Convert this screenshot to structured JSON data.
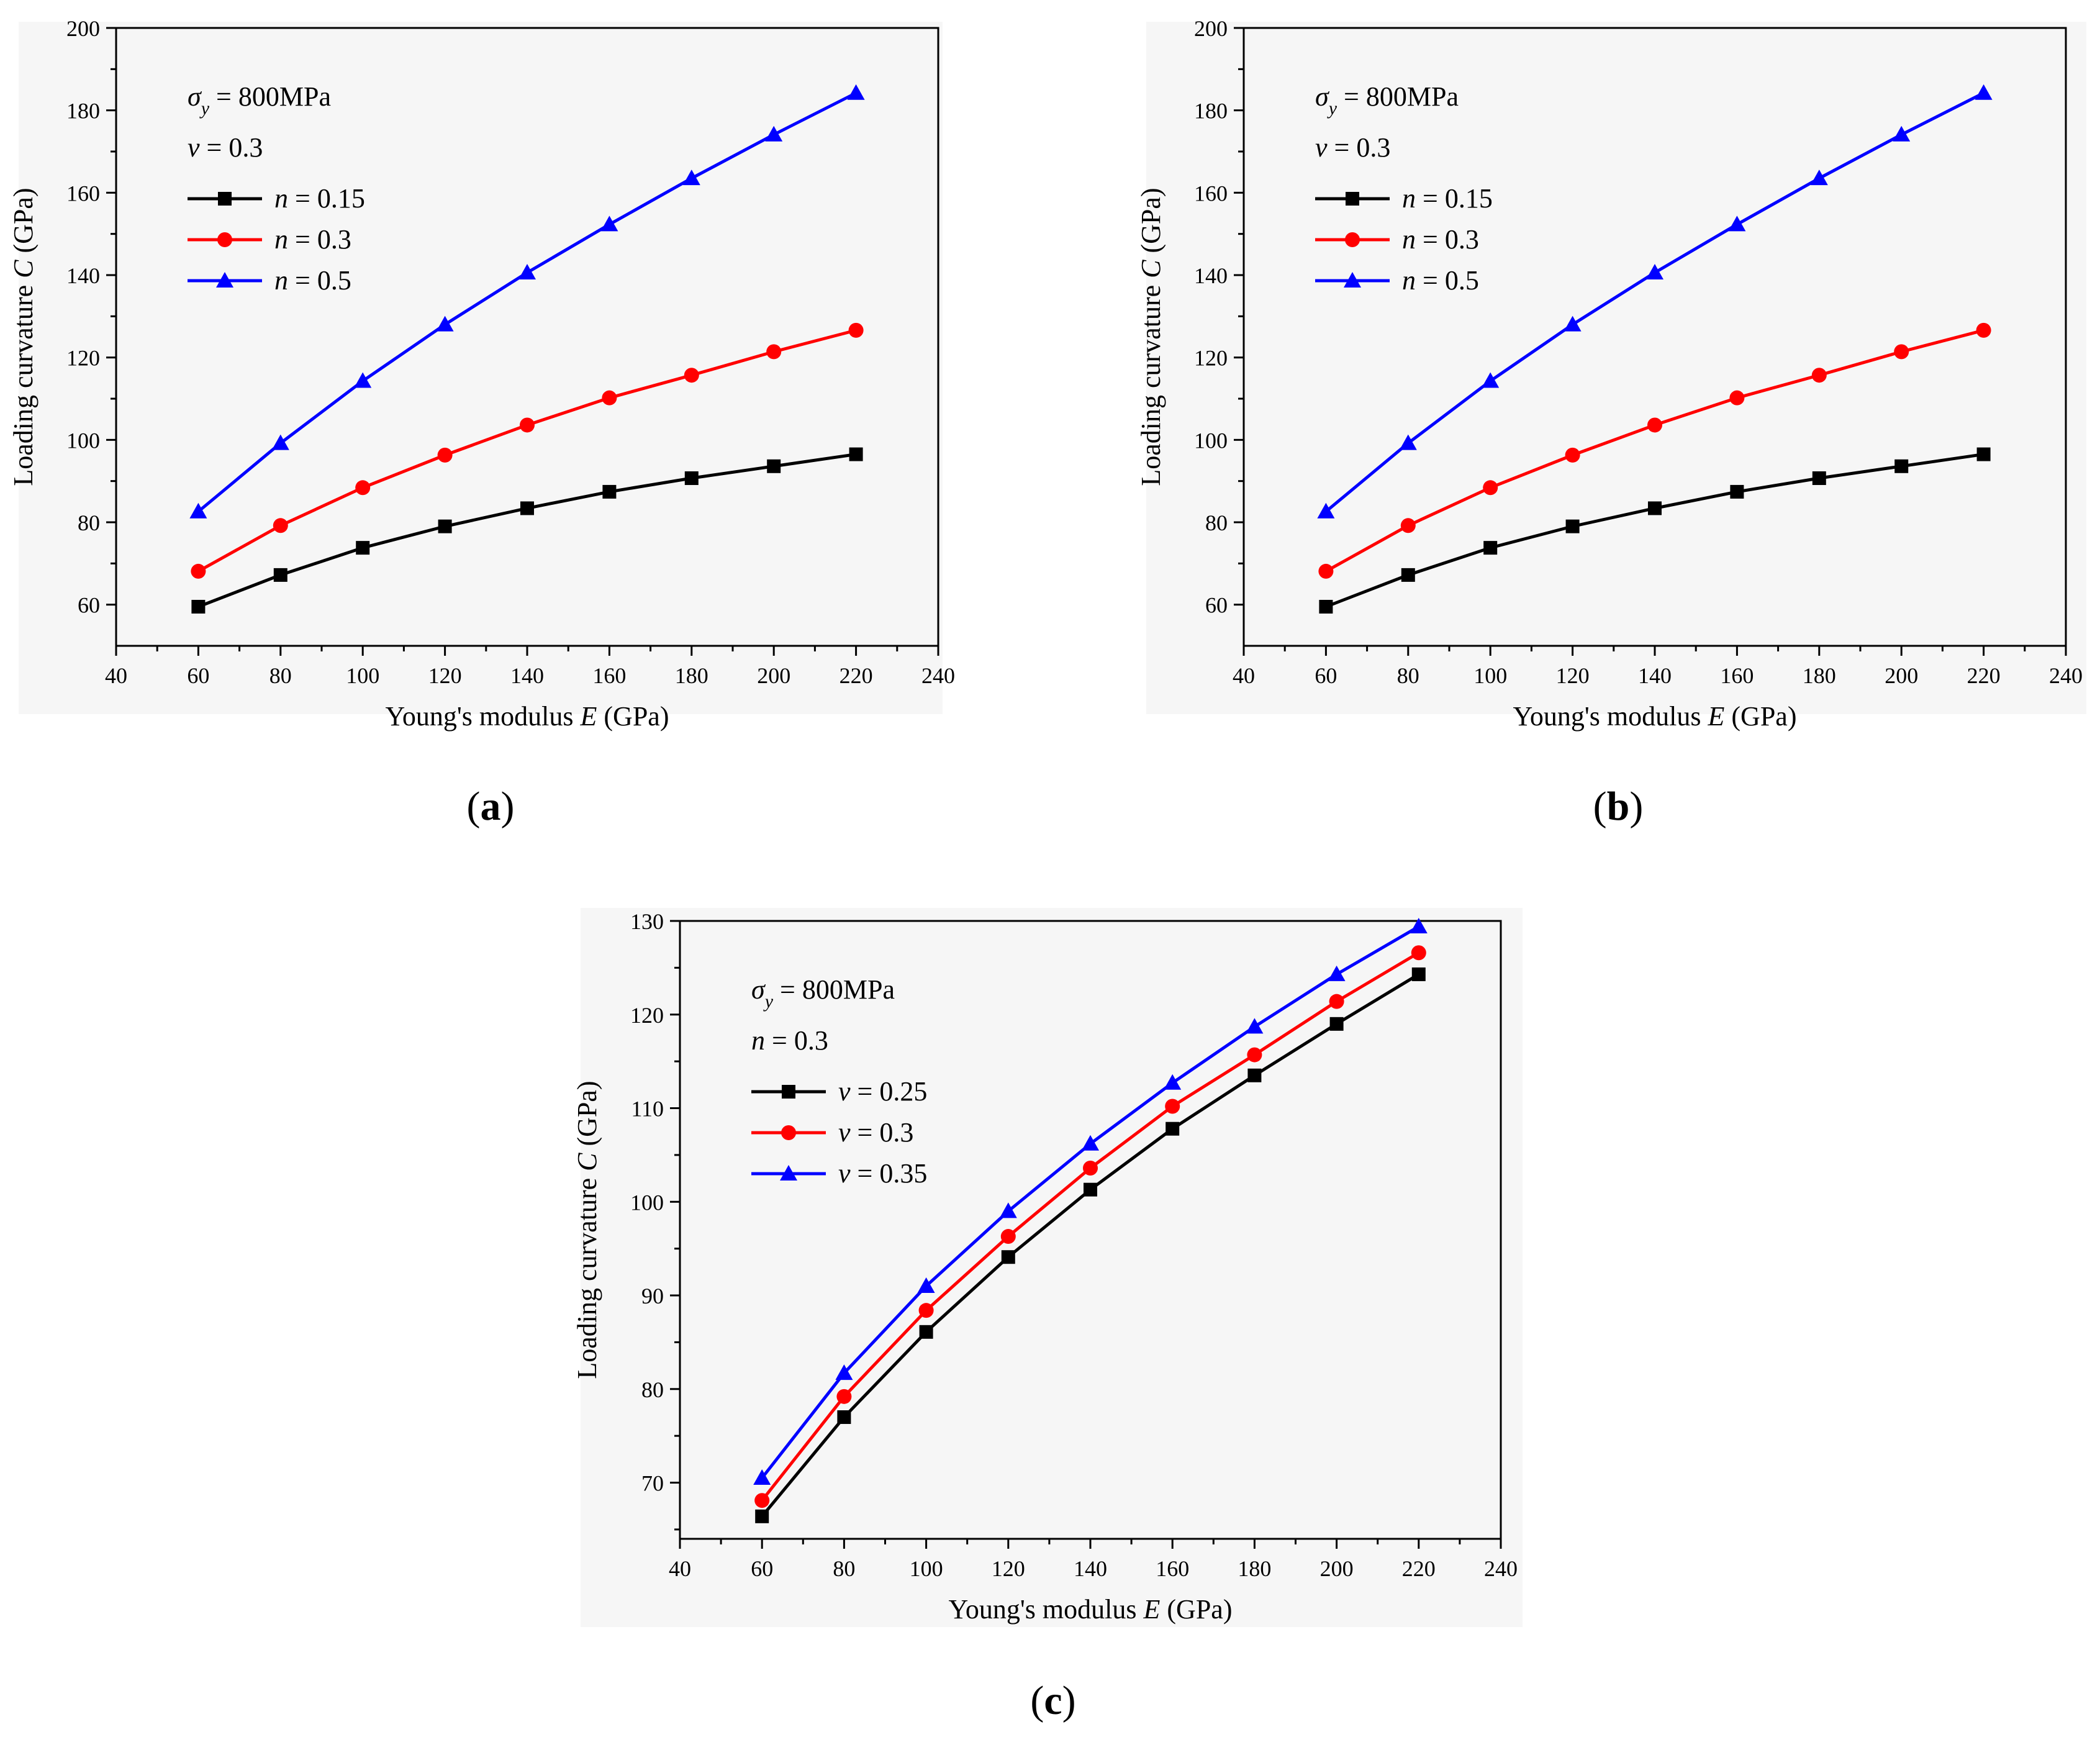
{
  "colors": {
    "black": "#000000",
    "red": "#ff0000",
    "blue": "#0000ff"
  },
  "chart_data": [
    {
      "id": "a",
      "type": "line",
      "caption": {
        "open": "(",
        "letter": "a",
        "close": ")"
      },
      "xlabel": {
        "prefix": "Young's modulus ",
        "var": "E",
        "suffix": " (GPa)"
      },
      "ylabel": {
        "prefix": "Loading curvature ",
        "var": "C",
        "suffix": " (GPa)"
      },
      "xlim": [
        40,
        240
      ],
      "ylim": [
        50,
        200
      ],
      "xticks": [
        40,
        60,
        80,
        100,
        120,
        140,
        160,
        180,
        200,
        220,
        240
      ],
      "yticks": [
        60,
        80,
        100,
        120,
        140,
        160,
        180,
        200
      ],
      "annotations": [
        {
          "var": "σ",
          "sub": "y",
          "text": " = 800MPa"
        },
        {
          "var": "ν",
          "sub": "",
          "text": " = 0.3"
        }
      ],
      "x": [
        60,
        80,
        100,
        120,
        140,
        160,
        180,
        200,
        220
      ],
      "series": [
        {
          "var": "n",
          "label": " = 0.15",
          "color": "#000000",
          "marker": "square",
          "values": [
            59.5,
            67.2,
            73.8,
            79.0,
            83.4,
            87.4,
            90.7,
            93.6,
            96.5
          ]
        },
        {
          "var": "n",
          "label": " = 0.3",
          "color": "#ff0000",
          "marker": "circle",
          "values": [
            68.1,
            79.2,
            88.4,
            96.3,
            103.6,
            110.2,
            115.7,
            121.4,
            126.6
          ]
        },
        {
          "var": "n",
          "label": " = 0.5",
          "color": "#0000ff",
          "marker": "triangle",
          "values": [
            82.6,
            99.2,
            114.3,
            128.0,
            140.6,
            152.3,
            163.5,
            174.1,
            184.2
          ]
        }
      ]
    },
    {
      "id": "b",
      "type": "line",
      "caption": {
        "open": "(",
        "letter": "b",
        "close": ")"
      },
      "xlabel": {
        "prefix": "Young's modulus ",
        "var": "E",
        "suffix": " (GPa)"
      },
      "ylabel": {
        "prefix": "Loading curvature ",
        "var": "C",
        "suffix": " (GPa)"
      },
      "xlim": [
        40,
        240
      ],
      "ylim": [
        50,
        200
      ],
      "xticks": [
        40,
        60,
        80,
        100,
        120,
        140,
        160,
        180,
        200,
        220,
        240
      ],
      "yticks": [
        60,
        80,
        100,
        120,
        140,
        160,
        180,
        200
      ],
      "annotations": [
        {
          "var": "σ",
          "sub": "y",
          "text": " = 800MPa"
        },
        {
          "var": "ν",
          "sub": "",
          "text": " = 0.3"
        }
      ],
      "x": [
        60,
        80,
        100,
        120,
        140,
        160,
        180,
        200,
        220
      ],
      "series": [
        {
          "var": "n",
          "label": " = 0.15",
          "color": "#000000",
          "marker": "square",
          "values": [
            59.5,
            67.2,
            73.8,
            79.0,
            83.4,
            87.4,
            90.7,
            93.6,
            96.5
          ]
        },
        {
          "var": "n",
          "label": " = 0.3",
          "color": "#ff0000",
          "marker": "circle",
          "values": [
            68.1,
            79.2,
            88.4,
            96.3,
            103.6,
            110.2,
            115.7,
            121.4,
            126.6
          ]
        },
        {
          "var": "n",
          "label": " = 0.5",
          "color": "#0000ff",
          "marker": "triangle",
          "values": [
            82.6,
            99.2,
            114.3,
            128.0,
            140.6,
            152.3,
            163.5,
            174.1,
            184.2
          ]
        }
      ]
    },
    {
      "id": "c",
      "type": "line",
      "caption": {
        "open": "(",
        "letter": "c",
        "close": ")"
      },
      "xlabel": {
        "prefix": "Young's modulus ",
        "var": "E",
        "suffix": " (GPa)"
      },
      "ylabel": {
        "prefix": "Loading curvature ",
        "var": "C",
        "suffix": " (GPa)"
      },
      "xlim": [
        40,
        240
      ],
      "ylim": [
        64,
        130
      ],
      "xticks": [
        40,
        60,
        80,
        100,
        120,
        140,
        160,
        180,
        200,
        220,
        240
      ],
      "yticks": [
        70,
        80,
        90,
        100,
        110,
        120,
        130
      ],
      "annotations": [
        {
          "var": "σ",
          "sub": "y",
          "text": " = 800MPa"
        },
        {
          "var": "n",
          "sub": "",
          "text": " = 0.3"
        }
      ],
      "x": [
        60,
        80,
        100,
        120,
        140,
        160,
        180,
        200,
        220
      ],
      "series": [
        {
          "var": "ν",
          "label": " = 0.25",
          "color": "#000000",
          "marker": "square",
          "values": [
            66.4,
            77.0,
            86.1,
            94.1,
            101.3,
            107.8,
            113.5,
            119.0,
            124.3
          ]
        },
        {
          "var": "ν",
          "label": " = 0.3",
          "color": "#ff0000",
          "marker": "circle",
          "values": [
            68.1,
            79.2,
            88.4,
            96.3,
            103.6,
            110.2,
            115.7,
            121.4,
            126.6
          ]
        },
        {
          "var": "ν",
          "label": " = 0.35",
          "color": "#0000ff",
          "marker": "triangle",
          "values": [
            70.5,
            81.7,
            91.0,
            99.0,
            106.2,
            112.7,
            118.7,
            124.3,
            129.4
          ]
        }
      ]
    }
  ]
}
